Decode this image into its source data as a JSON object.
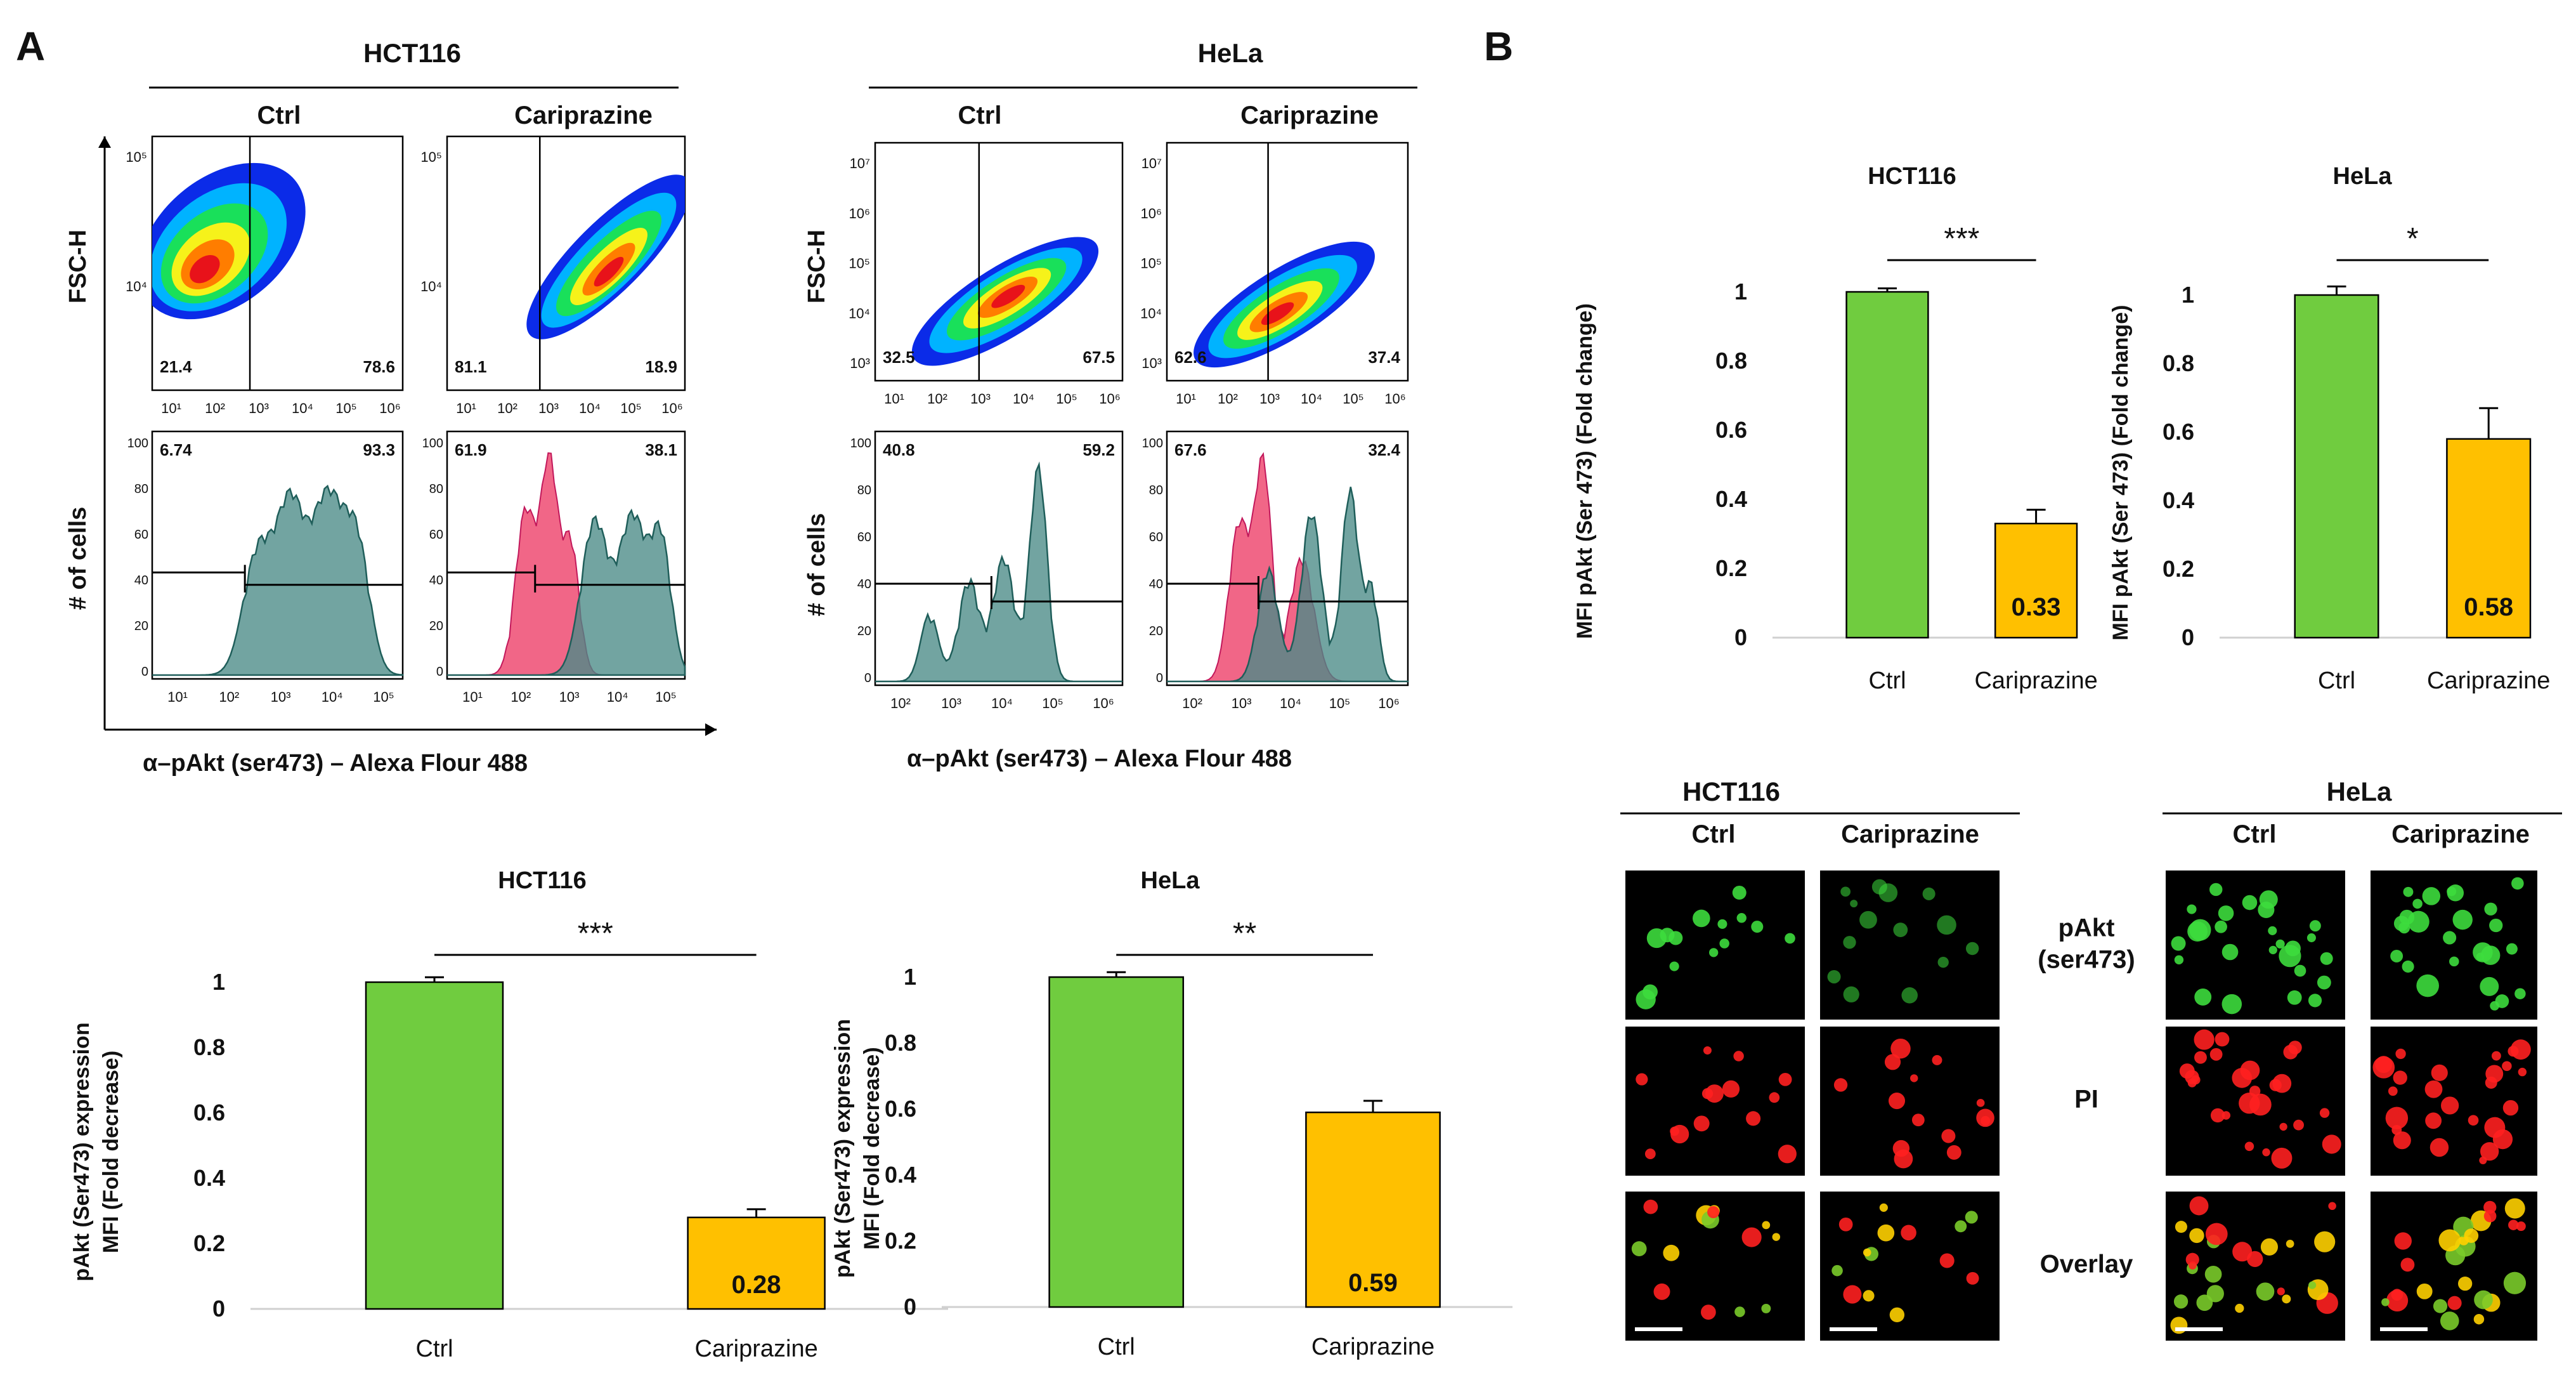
{
  "panel_labels": {
    "a": "A",
    "b": "B"
  },
  "flow": {
    "xlabel": "α–pAkt (ser473) – Alexa Flour 488",
    "ylabel_top": "FSC-H",
    "ylabel_bottom": "# of cells",
    "groups": [
      {
        "cell_line": "HCT116",
        "conditions": [
          "Ctrl",
          "Cariprazine"
        ],
        "density_quadrants": [
          [
            "21.4",
            "78.6"
          ],
          [
            "81.1",
            "18.9"
          ]
        ],
        "density_y_ticks": [
          "10⁵",
          "10⁴"
        ],
        "density_x_ticks": [
          "10¹",
          "10²",
          "10³",
          "10⁴",
          "10⁵",
          "10⁶"
        ],
        "hist_gates": [
          [
            "6.74",
            "93.3"
          ],
          [
            "61.9",
            "38.1"
          ]
        ],
        "hist_y_ticks": [
          "100",
          "80",
          "60",
          "40",
          "20",
          "0"
        ],
        "hist_x_ticks": [
          "10¹",
          "10²",
          "10³",
          "10⁴",
          "10⁵"
        ]
      },
      {
        "cell_line": "HeLa",
        "conditions": [
          "Ctrl",
          "Cariprazine"
        ],
        "density_quadrants": [
          [
            "32.5",
            "67.5"
          ],
          [
            "62.6",
            "37.4"
          ]
        ],
        "density_y_ticks": [
          "10⁷",
          "10⁶",
          "10⁵",
          "10⁴",
          "10³"
        ],
        "density_x_ticks": [
          "10¹",
          "10²",
          "10³",
          "10⁴",
          "10⁵",
          "10⁶"
        ],
        "hist_gates": [
          [
            "40.8",
            "59.2"
          ],
          [
            "67.6",
            "32.4"
          ]
        ],
        "hist_y_ticks": [
          "100",
          "80",
          "60",
          "40",
          "20",
          "0"
        ],
        "hist_x_ticks": [
          "10²",
          "10³",
          "10⁴",
          "10⁵",
          "10⁶"
        ]
      }
    ]
  },
  "chart_data": [
    {
      "type": "bar",
      "title": "HCT116",
      "categories": [
        "Ctrl",
        "Cariprazine"
      ],
      "values": [
        1.0,
        0.28
      ],
      "errors": [
        0.015,
        0.025
      ],
      "value_labels": [
        "",
        "0.28"
      ],
      "ylabel_lines": [
        "pAkt (Ser473) expression",
        "MFI (Fold decrease)"
      ],
      "ylim": [
        0,
        1
      ],
      "yticks": [
        "0",
        "0.2",
        "0.4",
        "0.6",
        "0.8",
        "1"
      ],
      "significance": "***",
      "colors": [
        "#70cc3f",
        "#ffc000"
      ]
    },
    {
      "type": "bar",
      "title": "HeLa",
      "categories": [
        "Ctrl",
        "Cariprazine"
      ],
      "values": [
        1.0,
        0.59
      ],
      "errors": [
        0.015,
        0.035
      ],
      "value_labels": [
        "",
        "0.59"
      ],
      "ylabel_lines": [
        "pAkt (Ser473) expression",
        "MFI (Fold decrease)"
      ],
      "ylim": [
        0,
        1
      ],
      "yticks": [
        "0",
        "0.2",
        "0.4",
        "0.6",
        "0.8",
        "1"
      ],
      "significance": "**",
      "colors": [
        "#70cc3f",
        "#ffc000"
      ]
    },
    {
      "type": "bar",
      "title": "HCT116",
      "categories": [
        "Ctrl",
        "Cariprazine"
      ],
      "values": [
        1.0,
        0.33
      ],
      "errors": [
        0.01,
        0.04
      ],
      "value_labels": [
        "",
        "0.33"
      ],
      "ylabel_lines": [
        "MFI pAkt (Ser 473) (Fold change)"
      ],
      "ylim": [
        0,
        1
      ],
      "yticks": [
        "0",
        "0.2",
        "0.4",
        "0.6",
        "0.8",
        "1"
      ],
      "significance": "***",
      "colors": [
        "#70cc3f",
        "#ffc000"
      ]
    },
    {
      "type": "bar",
      "title": "HeLa",
      "categories": [
        "Ctrl",
        "Cariprazine"
      ],
      "values": [
        1.0,
        0.58
      ],
      "errors": [
        0.025,
        0.09
      ],
      "value_labels": [
        "",
        "0.58"
      ],
      "ylabel_lines": [
        "MFI pAkt (Ser 473) (Fold change)"
      ],
      "ylim": [
        0,
        1
      ],
      "yticks": [
        "0",
        "0.2",
        "0.4",
        "0.6",
        "0.8",
        "1"
      ],
      "significance": "*",
      "colors": [
        "#70cc3f",
        "#ffc000"
      ]
    }
  ],
  "microscopy": {
    "groups": [
      {
        "cell_line": "HCT116",
        "conditions": [
          "Ctrl",
          "Cariprazine"
        ]
      },
      {
        "cell_line": "HeLa",
        "conditions": [
          "Ctrl",
          "Cariprazine"
        ]
      }
    ],
    "row_labels": [
      [
        "pAkt",
        "(ser473)"
      ],
      [
        "PI"
      ],
      [
        "Overlay"
      ]
    ],
    "channel_colors": [
      "#3ddc3d",
      "#ff2020"
    ]
  }
}
